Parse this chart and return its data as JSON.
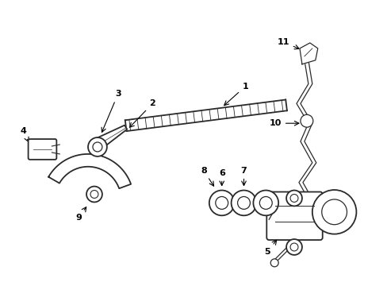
{
  "background": "#ffffff",
  "line_color": "#2a2a2a",
  "label_color": "#000000",
  "fig_width": 4.89,
  "fig_height": 3.6,
  "dpi": 100
}
